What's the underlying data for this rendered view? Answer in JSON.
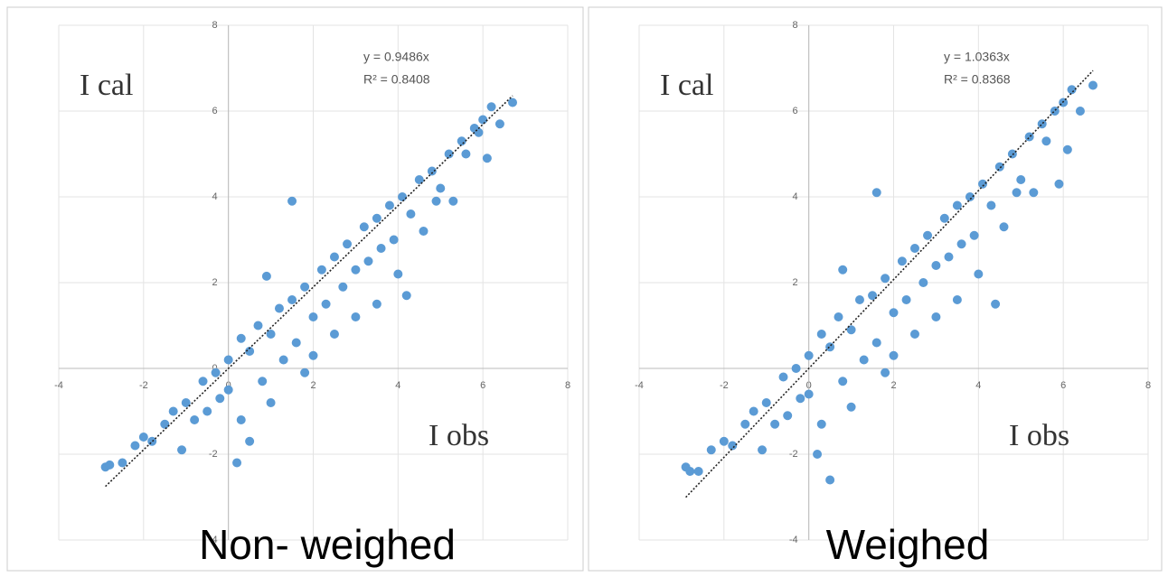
{
  "chart_data": [
    {
      "type": "scatter",
      "title": "Non- weighed",
      "x_label": "I obs",
      "y_label": "I cal",
      "xlim": [
        -4,
        8
      ],
      "ylim": [
        -4,
        8
      ],
      "xticks": [
        -4,
        -2,
        0,
        2,
        4,
        6,
        8
      ],
      "yticks": [
        -4,
        -2,
        0,
        2,
        4,
        6,
        8
      ],
      "grid": true,
      "color": "#5b9bd5",
      "trendline": {
        "slope": 0.9486,
        "label": "y = 0.9486x",
        "r2_label": "R² = 0.8408"
      },
      "x": [
        -2.9,
        -2.8,
        -2.5,
        -2.2,
        -2.0,
        -1.8,
        -1.5,
        -1.3,
        -1.1,
        -1.0,
        -0.8,
        -0.6,
        -0.5,
        -0.3,
        -0.2,
        0,
        0,
        0.2,
        0.3,
        0.3,
        0.5,
        0.5,
        0.7,
        0.8,
        0.9,
        1.0,
        1.0,
        1.2,
        1.3,
        1.5,
        1.5,
        1.6,
        1.8,
        1.8,
        2.0,
        2.0,
        2.2,
        2.3,
        2.5,
        2.5,
        2.7,
        2.8,
        3.0,
        3.0,
        3.2,
        3.3,
        3.5,
        3.5,
        3.6,
        3.8,
        3.9,
        4.0,
        4.1,
        4.2,
        4.3,
        4.5,
        4.6,
        4.8,
        4.9,
        5.0,
        5.2,
        5.3,
        5.5,
        5.6,
        5.8,
        5.9,
        6.0,
        6.1,
        6.2,
        6.4,
        6.7
      ],
      "values": [
        -2.3,
        -2.25,
        -2.2,
        -1.8,
        -1.6,
        -1.7,
        -1.3,
        -1.0,
        -1.9,
        -0.8,
        -1.2,
        -0.3,
        -1.0,
        -0.1,
        -0.7,
        0.2,
        -0.5,
        -2.2,
        0.7,
        -1.2,
        0.4,
        -1.7,
        1.0,
        -0.3,
        2.15,
        0.8,
        -0.8,
        1.4,
        0.2,
        3.9,
        1.6,
        0.6,
        -0.1,
        1.9,
        1.2,
        0.3,
        2.3,
        1.5,
        2.6,
        0.8,
        1.9,
        2.9,
        2.3,
        1.2,
        3.3,
        2.5,
        1.5,
        3.5,
        2.8,
        3.8,
        3.0,
        2.2,
        4.0,
        1.7,
        3.6,
        4.4,
        3.2,
        4.6,
        3.9,
        4.2,
        5.0,
        3.9,
        5.3,
        5.0,
        5.6,
        5.5,
        5.8,
        4.9,
        6.1,
        5.7,
        6.2
      ]
    },
    {
      "type": "scatter",
      "title": "Weighed",
      "x_label": "I obs",
      "y_label": "I cal",
      "xlim": [
        -4,
        8
      ],
      "ylim": [
        -4,
        8
      ],
      "xticks": [
        -4,
        -2,
        0,
        2,
        4,
        6,
        8
      ],
      "yticks": [
        -4,
        -2,
        0,
        2,
        4,
        6,
        8
      ],
      "grid": true,
      "color": "#5b9bd5",
      "trendline": {
        "slope": 1.0363,
        "label": "y = 1.0363x",
        "r2_label": "R² = 0.8368"
      },
      "x": [
        -2.9,
        -2.8,
        -2.6,
        -2.3,
        -2.0,
        -1.8,
        -1.5,
        -1.3,
        -1.1,
        -1.0,
        -0.8,
        -0.6,
        -0.5,
        -0.3,
        -0.2,
        0,
        0,
        0.2,
        0.3,
        0.3,
        0.5,
        0.5,
        0.7,
        0.8,
        0.8,
        1.0,
        1.0,
        1.2,
        1.3,
        1.6,
        1.5,
        1.6,
        1.8,
        1.8,
        2.0,
        2.0,
        2.2,
        2.3,
        2.5,
        2.5,
        2.7,
        2.8,
        3.0,
        3.0,
        3.2,
        3.3,
        3.5,
        3.5,
        3.6,
        3.8,
        3.9,
        4.0,
        4.1,
        4.4,
        4.3,
        4.5,
        4.6,
        4.8,
        4.9,
        5.0,
        5.2,
        5.3,
        5.5,
        5.6,
        5.8,
        5.9,
        6.0,
        6.1,
        6.2,
        6.4,
        6.7
      ],
      "values": [
        -2.3,
        -2.4,
        -2.4,
        -1.9,
        -1.7,
        -1.8,
        -1.3,
        -1.0,
        -1.9,
        -0.8,
        -1.3,
        -0.2,
        -1.1,
        0.0,
        -0.7,
        0.3,
        -0.6,
        -2.0,
        0.8,
        -1.3,
        0.5,
        -2.6,
        1.2,
        -0.3,
        2.3,
        0.9,
        -0.9,
        1.6,
        0.2,
        4.1,
        1.7,
        0.6,
        -0.1,
        2.1,
        1.3,
        0.3,
        2.5,
        1.6,
        2.8,
        0.8,
        2.0,
        3.1,
        2.4,
        1.2,
        3.5,
        2.6,
        1.6,
        3.8,
        2.9,
        4.0,
        3.1,
        2.2,
        4.3,
        1.5,
        3.8,
        4.7,
        3.3,
        5.0,
        4.1,
        4.4,
        5.4,
        4.1,
        5.7,
        5.3,
        6.0,
        4.3,
        6.2,
        5.1,
        6.5,
        6.0,
        6.6
      ]
    }
  ]
}
